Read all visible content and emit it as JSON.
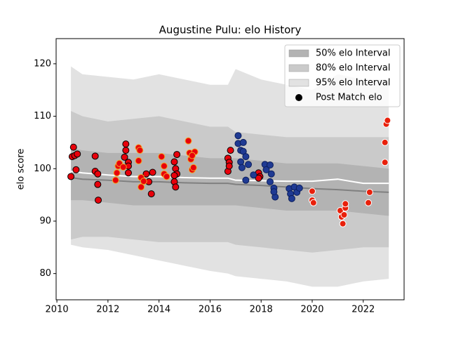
{
  "chart_data": {
    "type": "band_scatter",
    "title": "Augustine Pulu: elo History",
    "ylabel": "elo score",
    "xlim": [
      2009.97,
      2023.6
    ],
    "ylim": [
      75,
      124.8
    ],
    "xticks": [
      2010,
      2012,
      2014,
      2016,
      2018,
      2020,
      2022
    ],
    "yticks": [
      80,
      90,
      100,
      110,
      120
    ],
    "legend": "upper right",
    "band_x": [
      2010.55,
      2011,
      2012,
      2013,
      2014,
      2015,
      2016,
      2016.7,
      2017,
      2018,
      2019,
      2020,
      2021,
      2022,
      2023
    ],
    "bands": [
      {
        "name": "50% elo Interval",
        "color": "#b3b3b3",
        "upper": [
          104,
          103.5,
          103,
          103,
          103,
          102.5,
          102,
          102,
          102,
          101.5,
          101,
          101,
          101,
          100.5,
          100
        ],
        "lower": [
          94,
          94,
          93.5,
          93,
          93,
          93,
          93,
          93,
          93,
          92.5,
          92,
          92,
          92,
          91.5,
          91
        ]
      },
      {
        "name": "80% elo Interval",
        "color": "#cacaca",
        "upper": [
          111,
          110,
          109,
          109.5,
          110,
          109,
          108,
          108,
          107,
          106.5,
          106,
          106,
          106,
          106,
          106
        ],
        "lower": [
          86.5,
          87,
          87,
          86.5,
          86,
          86,
          86,
          86,
          85.5,
          85,
          84.5,
          84,
          84.5,
          85,
          85
        ]
      },
      {
        "name": "95% elo Interval",
        "color": "#e2e2e2",
        "upper": [
          119.5,
          118,
          117.5,
          117,
          118,
          117,
          116,
          116,
          119,
          117,
          116,
          115,
          118,
          117,
          117
        ],
        "lower": [
          85.5,
          85,
          84.5,
          83.5,
          82.5,
          81.5,
          80.5,
          80,
          79.5,
          79,
          78.5,
          77.5,
          77.5,
          78.5,
          79
        ]
      }
    ],
    "lines": [
      {
        "color": "#808080",
        "values": [
          98.3,
          98,
          97.8,
          97.5,
          97.5,
          97.3,
          97.2,
          97.2,
          97,
          96.8,
          96.5,
          96.2,
          96,
          95.7,
          95.5
        ]
      },
      {
        "color": "#ffffff",
        "values": [
          99.5,
          99.2,
          98.8,
          98.5,
          98.5,
          98.3,
          98.2,
          98.2,
          97.8,
          97.7,
          97.6,
          97.6,
          98,
          97.2,
          97.2
        ]
      }
    ],
    "points_label": "Post Match elo",
    "points": [
      {
        "color": "#e8000b",
        "edgecolor": "#000000",
        "x": [
          2010.55,
          2010.6,
          2010.65,
          2010.7,
          2010.8,
          2010.75,
          2011.5,
          2011.5,
          2011.6,
          2011.6,
          2011.62,
          2012.7,
          2012.7,
          2012.65,
          2012.8,
          2012.8,
          2012.8,
          2013.5,
          2013.6,
          2013.7,
          2013.75,
          2014.6,
          2014.65,
          2014.7,
          2014.7,
          2014.6,
          2014.65,
          2014.6,
          2016.7,
          2016.75,
          2016.8,
          2016.7,
          2016.75,
          2017.9,
          2017.95,
          2017.9
        ],
        "y": [
          98.5,
          102.3,
          104.1,
          102.5,
          102.8,
          99.8,
          102.4,
          99.5,
          99,
          97,
          94,
          104.7,
          103.5,
          102.2,
          101.2,
          100.5,
          99.2,
          99,
          97.5,
          95.2,
          99.3,
          101.3,
          100,
          102.7,
          99,
          97.5,
          96.5,
          98.7,
          102,
          101.2,
          103.5,
          99.5,
          100.5,
          99.2,
          98.5,
          98.2
        ]
      },
      {
        "color": "#e8000b",
        "edgecolor": "#f5a623",
        "x": [
          2012.3,
          2012.35,
          2012.4,
          2012.45,
          2012.6,
          2013.2,
          2013.25,
          2013.2,
          2013.3,
          2013.3,
          2013.4,
          2014.1,
          2014.2,
          2014.2,
          2014.3,
          2015.15,
          2015.2,
          2015.25,
          2015.3,
          2015.35,
          2015.4,
          2015.3
        ],
        "y": [
          97.8,
          99.2,
          100.5,
          101,
          100.3,
          104,
          103.5,
          101.5,
          98.3,
          96.5,
          97.6,
          102.3,
          100.5,
          99,
          98.5,
          105.3,
          103,
          101.8,
          99.8,
          100.2,
          103.2,
          102.5
        ]
      },
      {
        "color": "#1f3a93",
        "edgecolor": "#0c1f5c",
        "x": [
          2017.1,
          2017.1,
          2017.2,
          2017.3,
          2017.3,
          2017.2,
          2017.25,
          2017.4,
          2017.5,
          2017.4,
          2017.7,
          2018.15,
          2018.2,
          2018.35,
          2018.4,
          2018.35,
          2018.5,
          2018.55,
          2018.5,
          2019.1,
          2019.15,
          2019.2,
          2019.3,
          2019.4,
          2019.5
        ],
        "y": [
          106.3,
          104.8,
          103.5,
          105,
          103.3,
          101.3,
          100.2,
          102.3,
          100.8,
          97.8,
          98.8,
          100.8,
          99.8,
          100.7,
          99,
          97.5,
          96.3,
          94.6,
          95.6,
          96.2,
          95.2,
          94.3,
          96.5,
          95.5,
          96.3
        ]
      },
      {
        "color": "#e8200b",
        "edgecolor": "#ffffff",
        "x": [
          2020.0,
          2020.0,
          2020.05,
          2021.1,
          2021.15,
          2021.2,
          2021.25,
          2021.3,
          2021.3,
          2022.2,
          2022.25,
          2022.85,
          2022.85,
          2022.9,
          2022.95
        ],
        "y": [
          95.7,
          94,
          93.5,
          92,
          90.8,
          89.5,
          91.2,
          92.5,
          93.3,
          93.5,
          95.5,
          101.2,
          105,
          108.5,
          109.2
        ]
      }
    ]
  }
}
